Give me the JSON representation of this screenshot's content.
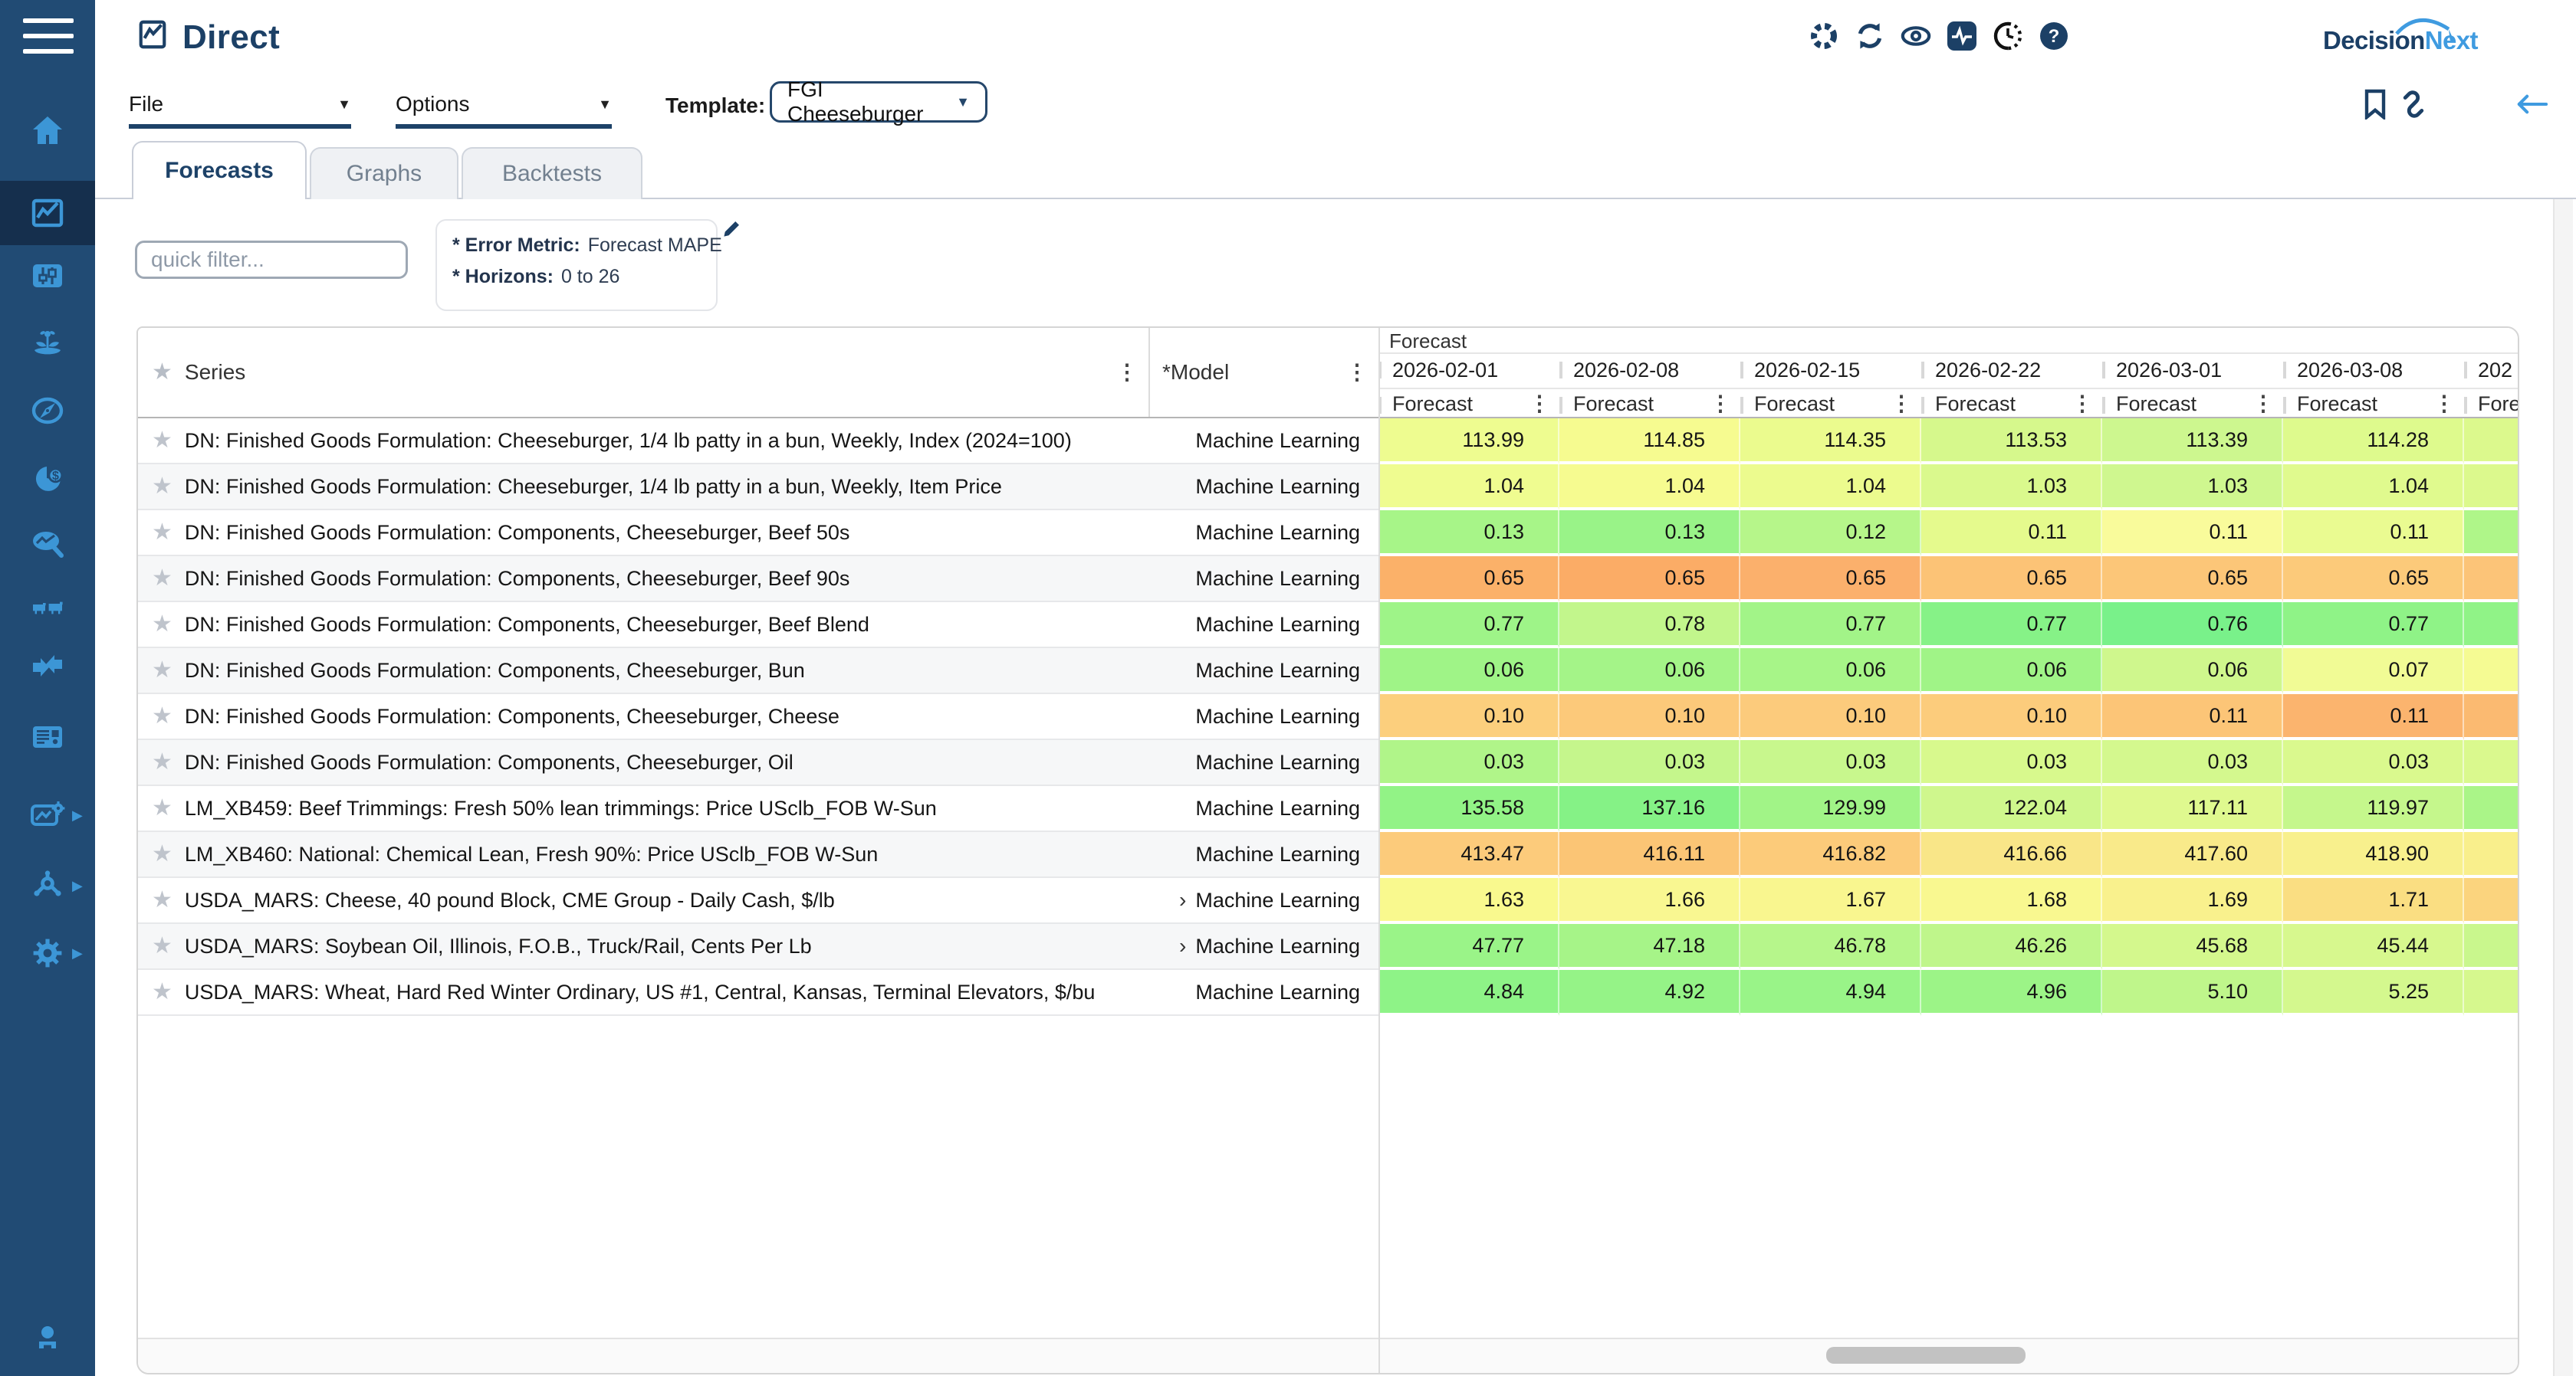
{
  "app": {
    "title": "Direct"
  },
  "logo": {
    "text_dark": "Decision",
    "text_light": "Next"
  },
  "glyphs": {
    "kebab": "⋮",
    "star": "★",
    "caret": "▼",
    "chevron": "›",
    "subarrow": "▶",
    "help": "?"
  },
  "colors": {
    "sidebar_bg": "#214B74",
    "sidebar_active_bg": "#152F4D",
    "icon_blue": "#3C96D6",
    "navy": "#1C4066",
    "light_blue": "#3F9BE0"
  },
  "header_icons": [
    "spinner-icon",
    "refresh-icon",
    "eye-icon",
    "activity-icon",
    "clock-icon",
    "help-icon"
  ],
  "action_icons": [
    "bookmark-icon",
    "link-icon",
    "back-arrow-icon"
  ],
  "sidebar": {
    "items": [
      "home",
      "direct-charts",
      "candlestick",
      "agriculture",
      "compass",
      "pie-dollar",
      "search-chart",
      "livestock",
      "converge",
      "news",
      "image-gear",
      "hub",
      "settings",
      "user"
    ],
    "active_item": "direct-charts"
  },
  "menus": {
    "file_label": "File",
    "options_label": "Options",
    "template_label": "Template:",
    "template_value": "FGI Cheeseburger"
  },
  "tabs": [
    {
      "label": "Forecasts",
      "active": true
    },
    {
      "label": "Graphs",
      "active": false
    },
    {
      "label": "Backtests",
      "active": false
    }
  ],
  "filter": {
    "placeholder": "quick filter..."
  },
  "info_box": {
    "error_metric_label": "* Error Metric:",
    "error_metric_value": "Forecast MAPE",
    "horizons_label": "* Horizons:",
    "horizons_value": "0 to 26"
  },
  "table": {
    "series_header": "Series",
    "model_header": "*Model",
    "group_header": "Forecast",
    "sub_header": "Forecast",
    "dates": [
      "2026-02-01",
      "2026-02-08",
      "2026-02-15",
      "2026-02-22",
      "2026-03-01",
      "2026-03-08",
      "202"
    ],
    "rows": [
      {
        "series": "DN: Finished Goods Formulation: Cheeseburger, 1/4 lb patty in a bun, Weekly, Index (2024=100)",
        "model": "Machine Learning",
        "expandable": false,
        "values": [
          "113.99",
          "114.85",
          "114.35",
          "113.53",
          "113.39",
          "114.28"
        ],
        "colors": [
          "#eefc90",
          "#f6fb90",
          "#ebfb8e",
          "#d6f88c",
          "#cdf78f",
          "#defa8d",
          "#dcf98d"
        ]
      },
      {
        "series": "DN: Finished Goods Formulation: Cheeseburger, 1/4 lb patty in a bun, Weekly, Item Price",
        "model": "Machine Learning",
        "expandable": false,
        "values": [
          "1.04",
          "1.04",
          "1.04",
          "1.03",
          "1.03",
          "1.04"
        ],
        "colors": [
          "#effc90",
          "#f6fb90",
          "#ecfb8e",
          "#daf98d",
          "#cff78f",
          "#e0fa8e",
          "#dcf98d"
        ]
      },
      {
        "series": "DN: Finished Goods Formulation: Components, Cheeseburger, Beef 50s",
        "model": "Machine Learning",
        "expandable": false,
        "values": [
          "0.13",
          "0.13",
          "0.12",
          "0.11",
          "0.11",
          "0.11"
        ],
        "colors": [
          "#a7f588",
          "#99f388",
          "#b6f68a",
          "#e5fa8d",
          "#f9fb9b",
          "#eafb91",
          "#aff689"
        ]
      },
      {
        "series": "DN: Finished Goods Formulation: Components, Cheeseburger, Beef 90s",
        "model": "Machine Learning",
        "expandable": false,
        "values": [
          "0.65",
          "0.65",
          "0.65",
          "0.65",
          "0.65",
          "0.65"
        ],
        "colors": [
          "#fbb169",
          "#fbac66",
          "#fbb06c",
          "#fcc376",
          "#fcc678",
          "#fcca7a",
          "#fcc478"
        ]
      },
      {
        "series": "DN: Finished Goods Formulation: Components, Cheeseburger, Beef Blend",
        "model": "Machine Learning",
        "expandable": false,
        "values": [
          "0.77",
          "0.78",
          "0.77",
          "0.77",
          "0.76",
          "0.77"
        ],
        "colors": [
          "#9ef488",
          "#c2f68c",
          "#a2f488",
          "#86f287",
          "#79f18a",
          "#8ff387",
          "#90f387"
        ]
      },
      {
        "series": "DN: Finished Goods Formulation: Components, Cheeseburger, Bun",
        "model": "Machine Learning",
        "expandable": false,
        "values": [
          "0.06",
          "0.06",
          "0.06",
          "0.06",
          "0.06",
          "0.07"
        ],
        "colors": [
          "#9ff487",
          "#a4f488",
          "#a7f588",
          "#a0f487",
          "#cff78d",
          "#f1fb95",
          "#f5fb93"
        ]
      },
      {
        "series": "DN: Finished Goods Formulation: Components, Cheeseburger, Cheese",
        "model": "Machine Learning",
        "expandable": false,
        "values": [
          "0.10",
          "0.10",
          "0.10",
          "0.10",
          "0.11",
          "0.11"
        ],
        "colors": [
          "#fccf7d",
          "#fcc97a",
          "#fccb7c",
          "#fccc7c",
          "#fcc577",
          "#fbb46e",
          "#fbba71"
        ]
      },
      {
        "series": "DN: Finished Goods Formulation: Components, Cheeseburger, Oil",
        "model": "Machine Learning",
        "expandable": false,
        "values": [
          "0.03",
          "0.03",
          "0.03",
          "0.03",
          "0.03",
          "0.03"
        ],
        "colors": [
          "#b0f589",
          "#c5f68c",
          "#c8f78d",
          "#d8f98d",
          "#d4f88e",
          "#daf98e",
          "#daf98e"
        ]
      },
      {
        "series": "LM_XB459: Beef Trimmings: Fresh 50% lean trimmings: Price USclb_FOB W-Sun",
        "model": "Machine Learning",
        "expandable": false,
        "values": [
          "135.58",
          "137.16",
          "129.99",
          "122.04",
          "117.11",
          "119.97"
        ],
        "colors": [
          "#92f386",
          "#85f286",
          "#a1f487",
          "#cff78d",
          "#dff98f",
          "#c5f78c",
          "#aaf588"
        ]
      },
      {
        "series": "LM_XB460: National: Chemical Lean, Fresh 90%: Price USclb_FOB W-Sun",
        "model": "Machine Learning",
        "expandable": false,
        "values": [
          "413.47",
          "416.11",
          "416.82",
          "416.66",
          "417.60",
          "418.90"
        ],
        "colors": [
          "#fccb7b",
          "#fbc575",
          "#fccb7a",
          "#f9e688",
          "#f9ea8a",
          "#f8f08d",
          "#f9ef8c"
        ]
      },
      {
        "series": "USDA_MARS: Cheese, 40 pound Block, CME Group - Daily Cash, $/lb",
        "model": "Machine Learning",
        "expandable": true,
        "values": [
          "1.63",
          "1.66",
          "1.67",
          "1.68",
          "1.69",
          "1.71"
        ],
        "colors": [
          "#f9f98e",
          "#f9f791",
          "#f9f68f",
          "#f9f890",
          "#f9f18d",
          "#fade82",
          "#fbd47e"
        ]
      },
      {
        "series": "USDA_MARS: Soybean Oil, Illinois, F.O.B., Truck/Rail, Cents Per Lb",
        "model": "Machine Learning",
        "expandable": true,
        "values": [
          "47.77",
          "47.18",
          "46.78",
          "46.26",
          "45.68",
          "45.44"
        ],
        "colors": [
          "#9af488",
          "#a6f488",
          "#b6f68b",
          "#bff68b",
          "#d4f88d",
          "#d7f88e",
          "#c9f78d"
        ]
      },
      {
        "series": "USDA_MARS: Wheat, Hard Red Winter Ordinary, US #1, Central, Kansas, Terminal Elevators, $/bu",
        "model": "Machine Learning",
        "expandable": false,
        "values": [
          "4.84",
          "4.92",
          "4.94",
          "4.96",
          "5.10",
          "5.25"
        ],
        "colors": [
          "#8ef387",
          "#95f387",
          "#99f488",
          "#9cf487",
          "#bff68b",
          "#d4f88e",
          "#d6f88e"
        ]
      }
    ]
  }
}
